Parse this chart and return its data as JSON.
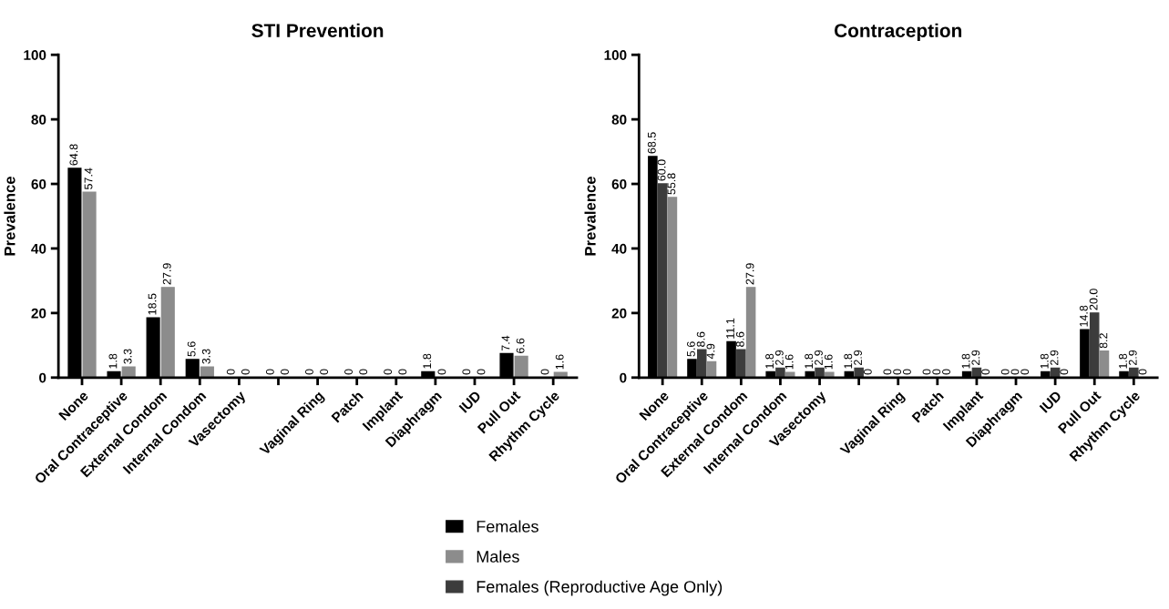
{
  "chart_data": [
    {
      "type": "bar",
      "title": "STI Prevention",
      "ylabel": "Prevalence",
      "categories": [
        "None",
        "Oral Contraceptive",
        "External Condom",
        "Internal Condom",
        "Vasectomy",
        null,
        "Vaginal Ring",
        "Patch",
        "Implant",
        "Diaphragm",
        "IUD",
        "Pull Out",
        "Rhythm Cycle"
      ],
      "series": [
        {
          "name": "Females",
          "color": "#000000",
          "values": [
            64.8,
            1.8,
            18.5,
            5.6,
            0,
            0,
            0,
            0,
            0,
            1.8,
            0,
            7.4,
            0
          ],
          "value_labels": [
            "64.8",
            "1.8",
            "18.5",
            "5.6",
            "0",
            "0",
            "0",
            "0",
            "0",
            "1.8",
            "0",
            "7.4",
            "0"
          ]
        },
        {
          "name": "Males",
          "color": "#8c8c8c",
          "values": [
            57.4,
            3.3,
            27.9,
            3.3,
            0,
            0,
            0,
            0,
            0,
            0,
            0,
            6.6,
            1.6
          ],
          "value_labels": [
            "57.4",
            "3.3",
            "27.9",
            "3.3",
            "0",
            "0",
            "0",
            "0",
            "0",
            "0",
            "0",
            "6.6",
            "1.6"
          ]
        }
      ],
      "ylim": [
        0,
        100
      ],
      "yticks": [
        0,
        20,
        40,
        60,
        80,
        100
      ],
      "grid": false,
      "legend": "bottom"
    },
    {
      "type": "bar",
      "title": "Contraception",
      "ylabel": "Prevalence",
      "categories": [
        "None",
        "Oral Contraceptive",
        "External Condom",
        "Internal Condom",
        "Vasectomy",
        null,
        "Vaginal Ring",
        "Patch",
        "Implant",
        "Diaphragm",
        "IUD",
        "Pull Out",
        "Rhythm Cycle"
      ],
      "series": [
        {
          "name": "Females",
          "color": "#000000",
          "values": [
            68.5,
            5.6,
            11.1,
            1.8,
            1.8,
            1.8,
            0,
            0,
            1.8,
            0,
            1.8,
            14.8,
            1.8
          ],
          "value_labels": [
            "68.5",
            "5.6",
            "11.1",
            "1.8",
            "1.8",
            "1.8",
            "0",
            "0",
            "1.8",
            "0",
            "1.8",
            "14.8",
            "1.8"
          ]
        },
        {
          "name": "Females (Reproductive Age Only)",
          "color": "#3c3c3c",
          "values": [
            60.0,
            8.6,
            8.6,
            2.9,
            2.9,
            2.9,
            0,
            0,
            2.9,
            0,
            2.9,
            20.0,
            2.9
          ],
          "value_labels": [
            "60.0",
            "8.6",
            "8.6",
            "2.9",
            "2.9",
            "2.9",
            "0",
            "0",
            "2.9",
            "0",
            "2.9",
            "20.0",
            "2.9"
          ]
        },
        {
          "name": "Males",
          "color": "#8c8c8c",
          "values": [
            55.8,
            4.9,
            27.9,
            1.6,
            1.6,
            0,
            0,
            0,
            0,
            0,
            0,
            8.2,
            0
          ],
          "value_labels": [
            "55.8",
            "4.9",
            "27.9",
            "1.6",
            "1.6",
            "0",
            "0",
            "0",
            "0",
            "0",
            "0",
            "8.2",
            "0"
          ]
        }
      ],
      "ylim": [
        0,
        100
      ],
      "yticks": [
        0,
        20,
        40,
        60,
        80,
        100
      ],
      "grid": false,
      "legend": "bottom"
    }
  ]
}
